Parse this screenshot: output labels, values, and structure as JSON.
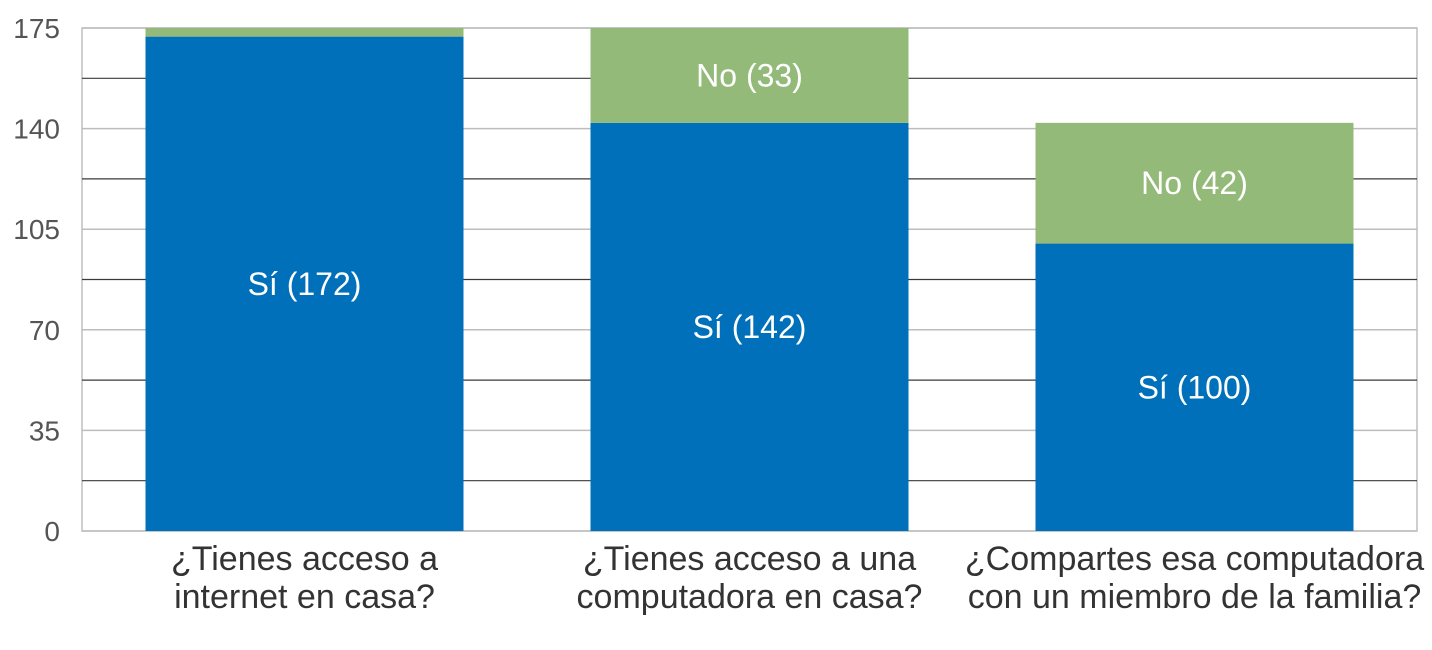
{
  "chart_data": {
    "type": "bar",
    "stacked": true,
    "title": "",
    "xlabel": "",
    "ylabel": "",
    "ylim": [
      0,
      175
    ],
    "yticks": [
      0,
      35,
      70,
      105,
      140,
      175
    ],
    "grid": true,
    "categories": [
      [
        "¿Tienes acceso a",
        "internet en casa?"
      ],
      [
        "¿Tienes acceso a una",
        "computadora en casa?"
      ],
      [
        "¿Compartes esa computadora",
        "con un miembro de la familia?"
      ]
    ],
    "series": [
      {
        "key": "si",
        "color": "#0070BA",
        "values": [
          172,
          142,
          100
        ],
        "labels": [
          "Sí (172)",
          "Sí (142)",
          "Sí (100)"
        ]
      },
      {
        "key": "no",
        "color": "#93BA78",
        "values": [
          3,
          33,
          42
        ],
        "labels": [
          "",
          "No (33)",
          "No (42)"
        ]
      }
    ]
  }
}
